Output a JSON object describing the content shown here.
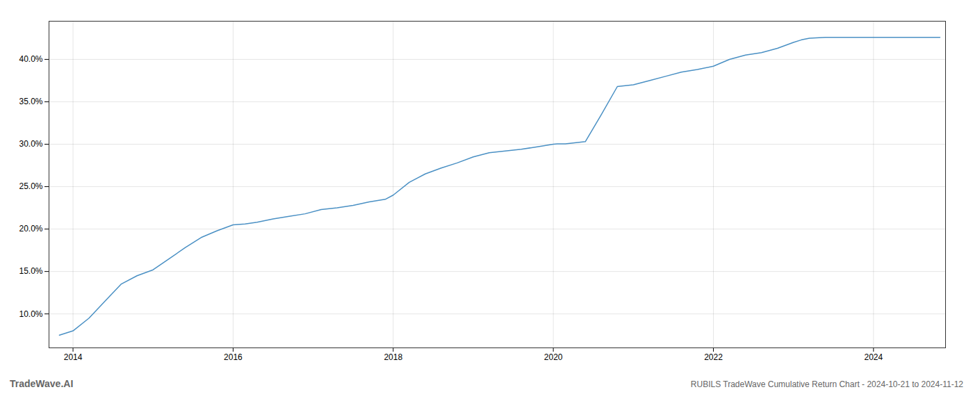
{
  "chart_data": {
    "type": "line",
    "annotations": [
      "TradeWave.AI",
      "RUBILS TradeWave Cumulative Return Chart - 2024-10-21 to 2024-11-12"
    ],
    "color": "#4a90c4",
    "grid": true,
    "xlim": [
      2013.7,
      2024.9
    ],
    "ylim": [
      6.0,
      44.5
    ],
    "xticks": [
      2014,
      2016,
      2018,
      2020,
      2022,
      2024
    ],
    "yticks": [
      {
        "value": 10.0,
        "label": "10.0%"
      },
      {
        "value": 15.0,
        "label": "15.0%"
      },
      {
        "value": 20.0,
        "label": "20.0%"
      },
      {
        "value": 25.0,
        "label": "25.0%"
      },
      {
        "value": 30.0,
        "label": "30.0%"
      },
      {
        "value": 35.0,
        "label": "35.0%"
      },
      {
        "value": 40.0,
        "label": "40.0%"
      }
    ],
    "x": [
      2013.83,
      2014.0,
      2014.2,
      2014.4,
      2014.6,
      2014.8,
      2015.0,
      2015.2,
      2015.4,
      2015.6,
      2015.8,
      2016.0,
      2016.15,
      2016.3,
      2016.5,
      2016.7,
      2016.9,
      2017.1,
      2017.3,
      2017.5,
      2017.7,
      2017.9,
      2018.0,
      2018.2,
      2018.4,
      2018.6,
      2018.8,
      2019.0,
      2019.2,
      2019.4,
      2019.6,
      2019.8,
      2020.0,
      2020.05,
      2020.15,
      2020.4,
      2020.6,
      2020.8,
      2021.0,
      2021.2,
      2021.4,
      2021.6,
      2021.8,
      2022.0,
      2022.2,
      2022.4,
      2022.6,
      2022.8,
      2023.0,
      2023.1,
      2023.2,
      2023.4,
      2023.6,
      2023.8,
      2024.0,
      2024.2,
      2024.4,
      2024.6,
      2024.83
    ],
    "values": [
      7.5,
      8.0,
      9.5,
      11.5,
      13.5,
      14.5,
      15.2,
      16.5,
      17.8,
      19.0,
      19.8,
      20.5,
      20.6,
      20.8,
      21.2,
      21.5,
      21.8,
      22.3,
      22.5,
      22.8,
      23.2,
      23.5,
      24.0,
      25.5,
      26.5,
      27.2,
      27.8,
      28.5,
      29.0,
      29.2,
      29.4,
      29.7,
      30.0,
      30.05,
      30.05,
      30.3,
      33.5,
      36.8,
      37.0,
      37.5,
      38.0,
      38.5,
      38.8,
      39.2,
      40.0,
      40.5,
      40.8,
      41.3,
      42.0,
      42.3,
      42.5,
      42.6,
      42.6,
      42.6,
      42.6,
      42.6,
      42.6,
      42.6,
      42.6
    ]
  }
}
